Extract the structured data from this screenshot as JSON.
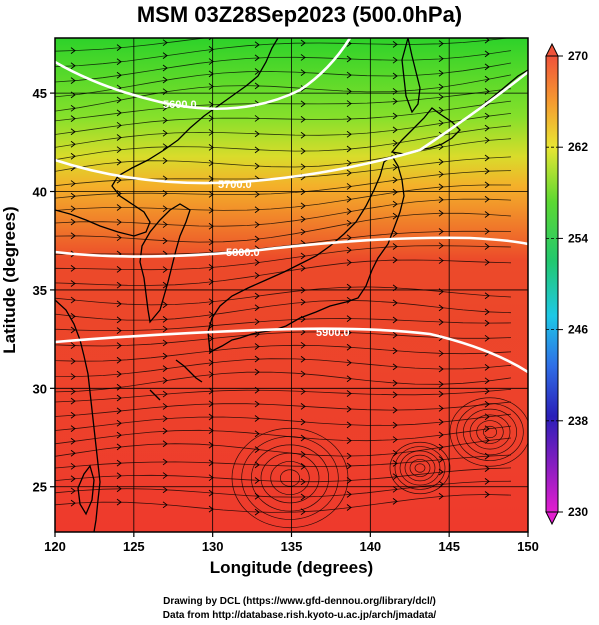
{
  "title": "MSM 03Z28Sep2023 (500.0hPa)",
  "x_axis": {
    "label": "Longitude (degrees)",
    "ticks": [
      "120",
      "125",
      "130",
      "135",
      "140",
      "145",
      "150"
    ]
  },
  "y_axis": {
    "label": "Latitude  (degrees)",
    "ticks": [
      "25",
      "30",
      "35",
      "40",
      "45"
    ]
  },
  "colorbar": {
    "ticks": [
      "270",
      "262",
      "254",
      "246",
      "238",
      "230"
    ]
  },
  "contour_labels": [
    "5600.0",
    "5700.0",
    "5800.0",
    "5900.0"
  ],
  "credits": {
    "line1": "Drawing by DCL (https://www.gfd-dennou.org/library/dcl/)",
    "line2": "Data from http://database.rish.kyoto-u.ac.jp/arch/jmadata/"
  },
  "colors": {
    "warm": "#ee3a2c",
    "cool": "#2dd22a",
    "contour": "#ffffff"
  }
}
